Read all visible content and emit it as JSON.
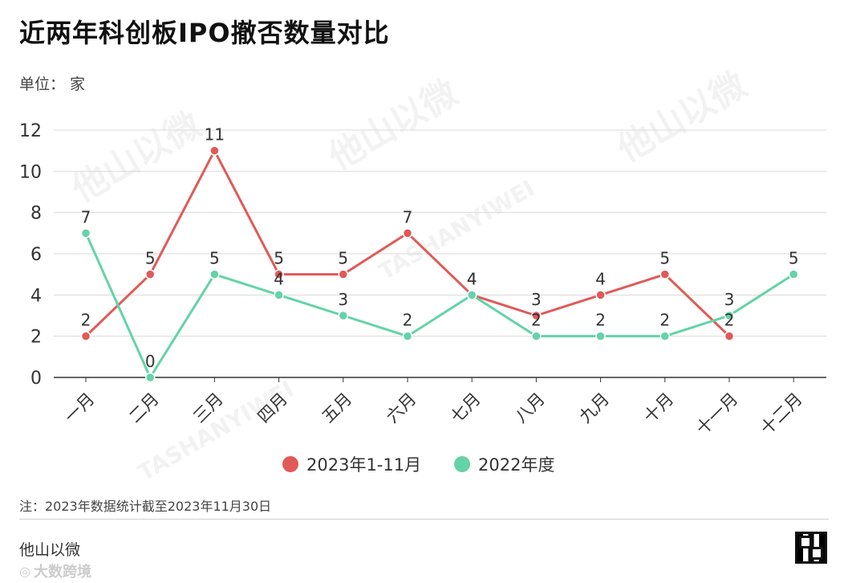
{
  "title": "近两年科创板IPO撤否数量对比",
  "unit_label": "单位：  家",
  "note": "注：2023年数据统计截至2023年11月30日",
  "brand": "他山以微",
  "footer_logo_text": "大数跨境",
  "watermarks": [
    "他山以微",
    "TASHANYIWEI"
  ],
  "colors": {
    "series_2023": "#e05a57",
    "series_2022": "#63d3a8",
    "grid": "#d9d9d9",
    "axis": "#333333"
  },
  "chart_data": {
    "type": "line",
    "categories": [
      "一月",
      "二月",
      "三月",
      "四月",
      "五月",
      "六月",
      "七月",
      "八月",
      "九月",
      "十月",
      "十一月",
      "十二月"
    ],
    "series": [
      {
        "name": "2023年1-11月",
        "values": [
          2,
          5,
          11,
          5,
          5,
          7,
          4,
          3,
          4,
          5,
          2,
          null
        ]
      },
      {
        "name": "2022年度",
        "values": [
          7,
          0,
          5,
          4,
          3,
          2,
          4,
          2,
          2,
          2,
          3,
          5
        ]
      }
    ],
    "yticks": [
      "0",
      "2",
      "4",
      "6",
      "8",
      "10",
      "12"
    ],
    "ylim": [
      0,
      12
    ],
    "grid": true,
    "legend": "bottom-center",
    "data_labels": true
  }
}
